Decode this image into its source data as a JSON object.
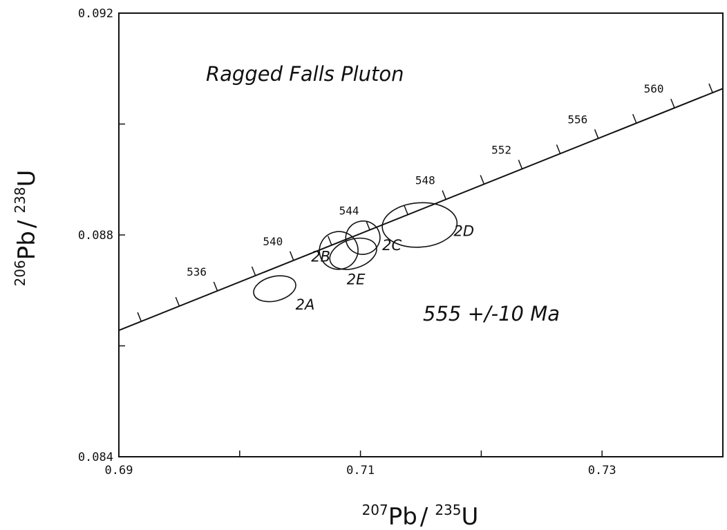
{
  "chart_data": {
    "type": "scatter",
    "subtype": "concordia-diagram",
    "title": "Ragged Falls Pluton",
    "annotation": "555 +/-10 Ma",
    "xlabel": {
      "sup1": "207",
      "base1": "Pb",
      "sep": "/",
      "sup2": "235",
      "base2": "U"
    },
    "ylabel": {
      "sup1": "206",
      "base1": "Pb",
      "sep": "/",
      "sup2": "238",
      "base2": "U"
    },
    "xlim": [
      0.69,
      0.74
    ],
    "ylim": [
      0.084,
      0.092
    ],
    "x_tick_labels": [
      "0.69",
      "0.71",
      "0.73"
    ],
    "x_ticks": [
      0.69,
      0.7,
      0.71,
      0.72,
      0.73,
      0.74
    ],
    "y_tick_labels": [
      "0.084",
      "0.088",
      "0.092"
    ],
    "y_ticks": [
      0.084,
      0.086,
      0.088,
      0.09,
      0.092
    ],
    "grid": false,
    "concordia": {
      "line_start": {
        "x": 0.69,
        "y": 0.08628
      },
      "line_end": {
        "x": 0.74,
        "y": 0.09064
      },
      "age_ticks_ma": [
        532,
        534,
        536,
        538,
        540,
        542,
        544,
        546,
        548,
        550,
        552,
        554,
        556,
        558,
        560,
        562
      ],
      "labeled_ages": [
        {
          "age": 536,
          "label": "536"
        },
        {
          "age": 540,
          "label": "540"
        },
        {
          "age": 544,
          "label": "544"
        },
        {
          "age": 548,
          "label": "548"
        },
        {
          "age": 552,
          "label": "552"
        },
        {
          "age": 556,
          "label": "556"
        },
        {
          "age": 560,
          "label": "560"
        }
      ]
    },
    "ellipses": [
      {
        "label": "2A",
        "cx": 0.7029,
        "cy": 0.08703,
        "rx": 0.00178,
        "ry": 0.00022,
        "angle_deg": -14
      },
      {
        "label": "2B",
        "cx": 0.7082,
        "cy": 0.08772,
        "rx": 0.0016,
        "ry": 0.00034,
        "angle_deg": -16
      },
      {
        "label": "2C",
        "cx": 0.7102,
        "cy": 0.08795,
        "rx": 0.00142,
        "ry": 0.0003,
        "angle_deg": -16
      },
      {
        "label": "2E",
        "cx": 0.7094,
        "cy": 0.08766,
        "rx": 0.002,
        "ry": 0.00026,
        "angle_deg": -18
      },
      {
        "label": "2D",
        "cx": 0.7149,
        "cy": 0.08818,
        "rx": 0.0031,
        "ry": 0.0004,
        "angle_deg": -4
      }
    ]
  }
}
